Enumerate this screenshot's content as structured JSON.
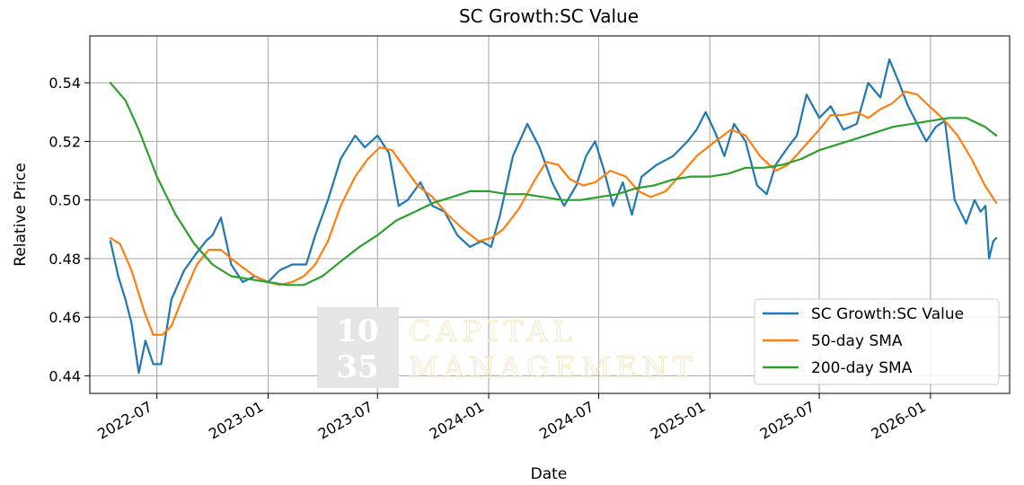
{
  "chart_data": {
    "type": "line",
    "title": "SC Growth:SC Value",
    "xlabel": "Date",
    "ylabel": "Relative Price",
    "xlim": [
      "2022-03-12",
      "2026-05-12"
    ],
    "ylim": [
      0.434,
      0.556
    ],
    "x_ticks": [
      "2022-07",
      "2023-01",
      "2023-07",
      "2024-01",
      "2024-07",
      "2025-01",
      "2025-07",
      "2026-01"
    ],
    "y_ticks": [
      "0.44",
      "0.46",
      "0.48",
      "0.50",
      "0.52",
      "0.54"
    ],
    "grid": true,
    "legend_position": "lower-right",
    "series": [
      {
        "name": "SC Growth:SC Value",
        "color": "#1f77b4",
        "x": [
          "2022-04-15",
          "2022-04-28",
          "2022-05-10",
          "2022-05-20",
          "2022-06-01",
          "2022-06-12",
          "2022-06-25",
          "2022-07-08",
          "2022-07-25",
          "2022-08-15",
          "2022-09-05",
          "2022-09-20",
          "2022-10-01",
          "2022-10-15",
          "2022-11-01",
          "2022-11-20",
          "2022-12-10",
          "2023-01-01",
          "2023-01-20",
          "2023-02-10",
          "2023-03-05",
          "2023-03-20",
          "2023-04-10",
          "2023-05-01",
          "2023-05-25",
          "2023-06-10",
          "2023-07-01",
          "2023-07-20",
          "2023-08-05",
          "2023-08-20",
          "2023-09-10",
          "2023-09-30",
          "2023-10-20",
          "2023-11-10",
          "2023-12-01",
          "2023-12-20",
          "2024-01-05",
          "2024-01-20",
          "2024-02-10",
          "2024-03-05",
          "2024-03-25",
          "2024-04-15",
          "2024-05-05",
          "2024-05-25",
          "2024-06-10",
          "2024-06-25",
          "2024-07-10",
          "2024-07-25",
          "2024-08-10",
          "2024-08-25",
          "2024-09-10",
          "2024-10-05",
          "2024-11-01",
          "2024-11-25",
          "2024-12-10",
          "2024-12-25",
          "2025-01-10",
          "2025-01-25",
          "2025-02-10",
          "2025-03-01",
          "2025-03-20",
          "2025-04-05",
          "2025-04-20",
          "2025-05-10",
          "2025-05-25",
          "2025-06-10",
          "2025-07-01",
          "2025-07-20",
          "2025-08-10",
          "2025-09-01",
          "2025-09-20",
          "2025-10-10",
          "2025-10-25",
          "2025-11-10",
          "2025-11-25",
          "2025-12-10",
          "2025-12-25",
          "2026-01-10",
          "2026-01-25",
          "2026-02-10",
          "2026-03-01",
          "2026-03-15",
          "2026-03-25",
          "2026-04-02",
          "2026-04-08",
          "2026-04-15",
          "2026-04-20"
        ],
        "values": [
          0.486,
          0.474,
          0.466,
          0.458,
          0.441,
          0.452,
          0.444,
          0.444,
          0.466,
          0.476,
          0.482,
          0.486,
          0.488,
          0.494,
          0.478,
          0.472,
          0.474,
          0.472,
          0.476,
          0.478,
          0.478,
          0.488,
          0.5,
          0.514,
          0.522,
          0.518,
          0.522,
          0.516,
          0.498,
          0.5,
          0.506,
          0.498,
          0.496,
          0.488,
          0.484,
          0.486,
          0.484,
          0.495,
          0.515,
          0.526,
          0.518,
          0.506,
          0.498,
          0.505,
          0.515,
          0.52,
          0.51,
          0.498,
          0.506,
          0.495,
          0.508,
          0.512,
          0.515,
          0.52,
          0.524,
          0.53,
          0.523,
          0.515,
          0.526,
          0.52,
          0.505,
          0.502,
          0.512,
          0.518,
          0.522,
          0.536,
          0.528,
          0.532,
          0.524,
          0.526,
          0.54,
          0.535,
          0.548,
          0.54,
          0.532,
          0.526,
          0.52,
          0.525,
          0.527,
          0.5,
          0.492,
          0.5,
          0.496,
          0.498,
          0.48,
          0.486,
          0.487
        ]
      },
      {
        "name": "50-day SMA",
        "color": "#ff7f0e",
        "x": [
          "2022-04-15",
          "2022-05-01",
          "2022-05-20",
          "2022-06-10",
          "2022-06-25",
          "2022-07-10",
          "2022-07-25",
          "2022-08-15",
          "2022-09-05",
          "2022-09-25",
          "2022-10-15",
          "2022-11-01",
          "2022-11-20",
          "2022-12-10",
          "2023-01-01",
          "2023-01-20",
          "2023-02-10",
          "2023-03-01",
          "2023-03-20",
          "2023-04-10",
          "2023-05-01",
          "2023-05-25",
          "2023-06-15",
          "2023-07-05",
          "2023-07-25",
          "2023-08-15",
          "2023-09-05",
          "2023-09-30",
          "2023-10-25",
          "2023-11-20",
          "2023-12-15",
          "2024-01-05",
          "2024-01-25",
          "2024-02-20",
          "2024-03-15",
          "2024-04-05",
          "2024-04-25",
          "2024-05-15",
          "2024-06-05",
          "2024-06-25",
          "2024-07-20",
          "2024-08-15",
          "2024-09-05",
          "2024-09-25",
          "2024-10-20",
          "2024-11-15",
          "2024-12-10",
          "2025-01-10",
          "2025-02-05",
          "2025-03-01",
          "2025-03-25",
          "2025-04-20",
          "2025-05-10",
          "2025-06-05",
          "2025-07-01",
          "2025-07-20",
          "2025-08-10",
          "2025-09-01",
          "2025-09-20",
          "2025-10-10",
          "2025-10-30",
          "2025-11-20",
          "2025-12-10",
          "2025-12-25",
          "2026-01-10",
          "2026-01-25",
          "2026-02-15",
          "2026-03-10",
          "2026-04-01",
          "2026-04-20"
        ],
        "values": [
          0.487,
          0.485,
          0.476,
          0.462,
          0.454,
          0.454,
          0.457,
          0.468,
          0.478,
          0.483,
          0.483,
          0.48,
          0.477,
          0.474,
          0.472,
          0.471,
          0.472,
          0.474,
          0.478,
          0.486,
          0.498,
          0.508,
          0.514,
          0.518,
          0.517,
          0.511,
          0.505,
          0.501,
          0.495,
          0.49,
          0.486,
          0.487,
          0.49,
          0.497,
          0.506,
          0.513,
          0.512,
          0.507,
          0.505,
          0.506,
          0.51,
          0.508,
          0.503,
          0.501,
          0.503,
          0.509,
          0.515,
          0.52,
          0.524,
          0.522,
          0.515,
          0.51,
          0.512,
          0.518,
          0.524,
          0.529,
          0.529,
          0.53,
          0.528,
          0.531,
          0.533,
          0.537,
          0.536,
          0.533,
          0.53,
          0.527,
          0.522,
          0.514,
          0.505,
          0.499
        ]
      },
      {
        "name": "200-day SMA",
        "color": "#2ca02c",
        "x": [
          "2022-04-15",
          "2022-05-10",
          "2022-06-01",
          "2022-07-01",
          "2022-08-01",
          "2022-09-01",
          "2022-10-01",
          "2022-11-01",
          "2022-12-01",
          "2023-01-01",
          "2023-02-01",
          "2023-03-01",
          "2023-04-01",
          "2023-05-01",
          "2023-06-01",
          "2023-07-01",
          "2023-08-01",
          "2023-09-01",
          "2023-10-01",
          "2023-11-01",
          "2023-12-01",
          "2024-01-01",
          "2024-02-01",
          "2024-03-01",
          "2024-04-01",
          "2024-05-01",
          "2024-06-01",
          "2024-07-01",
          "2024-08-01",
          "2024-09-01",
          "2024-10-01",
          "2024-11-01",
          "2024-12-01",
          "2025-01-01",
          "2025-02-01",
          "2025-03-01",
          "2025-04-01",
          "2025-05-01",
          "2025-06-01",
          "2025-07-01",
          "2025-08-01",
          "2025-09-01",
          "2025-10-01",
          "2025-11-01",
          "2025-12-01",
          "2026-01-01",
          "2026-02-01",
          "2026-03-01",
          "2026-04-01",
          "2026-04-20"
        ],
        "values": [
          0.54,
          0.534,
          0.524,
          0.508,
          0.495,
          0.485,
          0.478,
          0.474,
          0.473,
          0.472,
          0.471,
          0.471,
          0.474,
          0.479,
          0.484,
          0.488,
          0.493,
          0.496,
          0.499,
          0.501,
          0.503,
          0.503,
          0.502,
          0.502,
          0.501,
          0.5,
          0.5,
          0.501,
          0.502,
          0.504,
          0.505,
          0.507,
          0.508,
          0.508,
          0.509,
          0.511,
          0.511,
          0.512,
          0.514,
          0.517,
          0.519,
          0.521,
          0.523,
          0.525,
          0.526,
          0.527,
          0.528,
          0.528,
          0.525,
          0.522
        ]
      }
    ]
  },
  "watermark": {
    "line1": "10",
    "line2": "35",
    "text1": "CAPITAL",
    "text2": "MANAGEMENT"
  }
}
